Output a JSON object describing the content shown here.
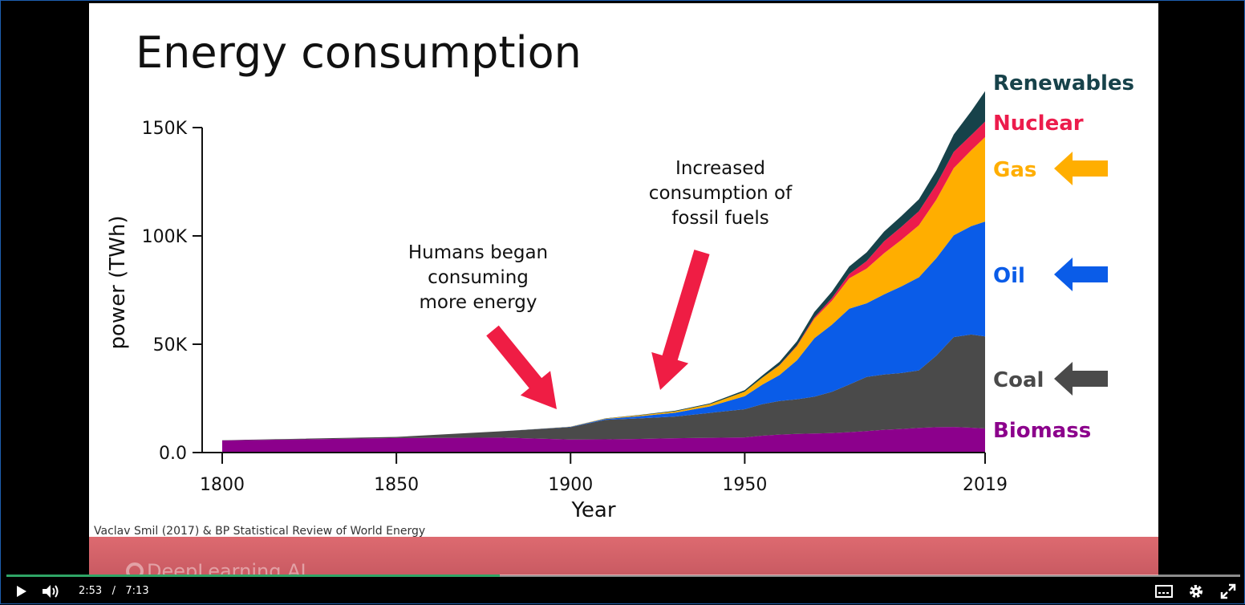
{
  "player": {
    "current_time": "2:53",
    "separator": "/",
    "duration": "7:13",
    "progress": 0.4,
    "play_icon": "play-icon",
    "volume_icon": "volume-icon",
    "captions_icon": "captions-icon",
    "settings_icon": "gear-icon",
    "fullscreen_icon": "fullscreen-icon"
  },
  "slide": {
    "source": "Vaclav Smil (2017) & BP Statistical Review of World Energy",
    "logo_text": "DeepLearning.AI",
    "annotations": [
      {
        "lines": [
          "Humans began",
          "consuming",
          "more energy"
        ]
      },
      {
        "lines": [
          "Increased",
          "consumption of",
          "fossil fuels"
        ]
      }
    ],
    "colors": {
      "arrow": "#ef1d44",
      "biomass": "#8c008c",
      "coal": "#4a4a4a",
      "oil": "#0a5ce8",
      "gas": "#ffae00",
      "nuclear": "#ec1c4c",
      "renewables": "#17424a"
    }
  },
  "chart_data": {
    "type": "area",
    "title": "Energy consumption",
    "xlabel": "Year",
    "ylabel": "power (TWh)",
    "xlim": [
      1800,
      2019
    ],
    "ylim": [
      0,
      150000
    ],
    "x_ticks": [
      "1800",
      "1850",
      "1900",
      "1950",
      "2019"
    ],
    "y_ticks": [
      "0.0",
      "50K",
      "100K",
      "150K"
    ],
    "stacked": true,
    "x": [
      1800,
      1850,
      1880,
      1900,
      1910,
      1920,
      1930,
      1940,
      1950,
      1955,
      1960,
      1965,
      1970,
      1975,
      1980,
      1985,
      1990,
      1995,
      2000,
      2005,
      2010,
      2015,
      2019
    ],
    "series": [
      {
        "name": "Biomass",
        "color": "#8c008c",
        "values": [
          5600,
          6700,
          6900,
          6000,
          6100,
          6300,
          6600,
          6800,
          7000,
          7800,
          8300,
          8600,
          8800,
          9000,
          9400,
          9900,
          10500,
          10900,
          11400,
          11700,
          11800,
          11500,
          11100
        ]
      },
      {
        "name": "Coal",
        "color": "#4a4a4a",
        "values": [
          100,
          500,
          2900,
          5700,
          9000,
          9500,
          10000,
          11500,
          13000,
          14500,
          15500,
          16000,
          17000,
          19000,
          22000,
          25000,
          25500,
          25800,
          26500,
          33000,
          41500,
          43000,
          42500
        ]
      },
      {
        "name": "Oil",
        "color": "#0a5ce8",
        "values": [
          0,
          0,
          0,
          200,
          400,
          1000,
          1800,
          3000,
          6000,
          9000,
          12000,
          18000,
          27000,
          31000,
          35000,
          34000,
          37000,
          40000,
          43000,
          45000,
          47000,
          50000,
          53000
        ]
      },
      {
        "name": "Gas",
        "color": "#ffae00",
        "values": [
          0,
          0,
          0,
          100,
          200,
          400,
          600,
          1000,
          2100,
          3200,
          4500,
          6500,
          9000,
          11000,
          14000,
          16000,
          19000,
          21500,
          24000,
          27000,
          31000,
          35000,
          39000
        ]
      },
      {
        "name": "Nuclear",
        "color": "#ec1c4c",
        "values": [
          0,
          0,
          0,
          0,
          0,
          0,
          0,
          0,
          0,
          0,
          100,
          300,
          600,
          1200,
          2000,
          3500,
          5500,
          6000,
          6500,
          7000,
          7500,
          7000,
          7200
        ]
      },
      {
        "name": "Renewables",
        "color": "#17424a",
        "values": [
          0,
          0,
          0,
          0,
          100,
          200,
          300,
          400,
          700,
          1000,
          1500,
          2000,
          2500,
          3000,
          3500,
          4000,
          4500,
          5000,
          5500,
          6500,
          8000,
          11000,
          14000
        ]
      }
    ],
    "legend": "right",
    "legend_arrows": [
      "Gas",
      "Oil",
      "Coal"
    ],
    "grid": false
  }
}
